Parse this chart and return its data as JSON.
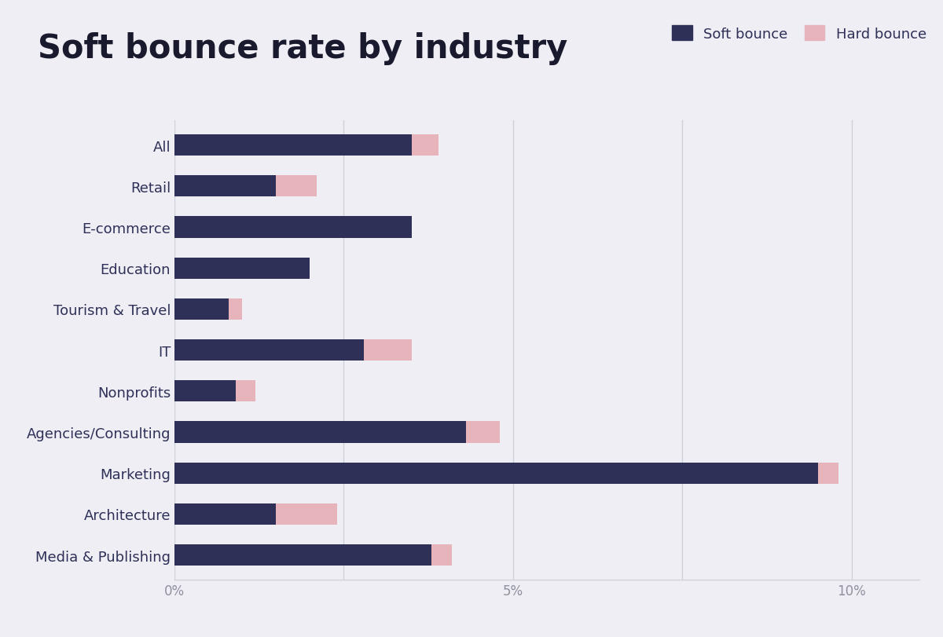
{
  "title": "Soft bounce rate by industry",
  "categories": [
    "All",
    "Retail",
    "E-commerce",
    "Education",
    "Tourism & Travel",
    "IT",
    "Nonprofits",
    "Agencies/Consulting",
    "Marketing",
    "Architecture",
    "Media & Publishing"
  ],
  "soft_bounce": [
    3.5,
    1.5,
    3.5,
    2.0,
    0.8,
    2.8,
    0.9,
    4.3,
    9.5,
    1.5,
    3.8
  ],
  "hard_bounce": [
    0.4,
    0.6,
    0.0,
    0.0,
    0.2,
    0.7,
    0.3,
    0.5,
    0.3,
    0.9,
    0.3
  ],
  "soft_color": "#2E3057",
  "hard_color": "#E8B4BC",
  "background_color": "#EEEEF4",
  "title_color": "#1a1a2e",
  "label_color": "#2E3057",
  "tick_color": "#9090A0",
  "grid_color": "#D0D0DC",
  "xlim": [
    0,
    11
  ],
  "xticks": [
    0,
    2.5,
    5,
    7.5,
    10
  ],
  "xtick_labels": [
    "0%",
    "",
    "5%",
    "",
    "10%"
  ],
  "bar_height": 0.52,
  "title_fontsize": 30,
  "label_fontsize": 13,
  "tick_fontsize": 12,
  "legend_fontsize": 13
}
